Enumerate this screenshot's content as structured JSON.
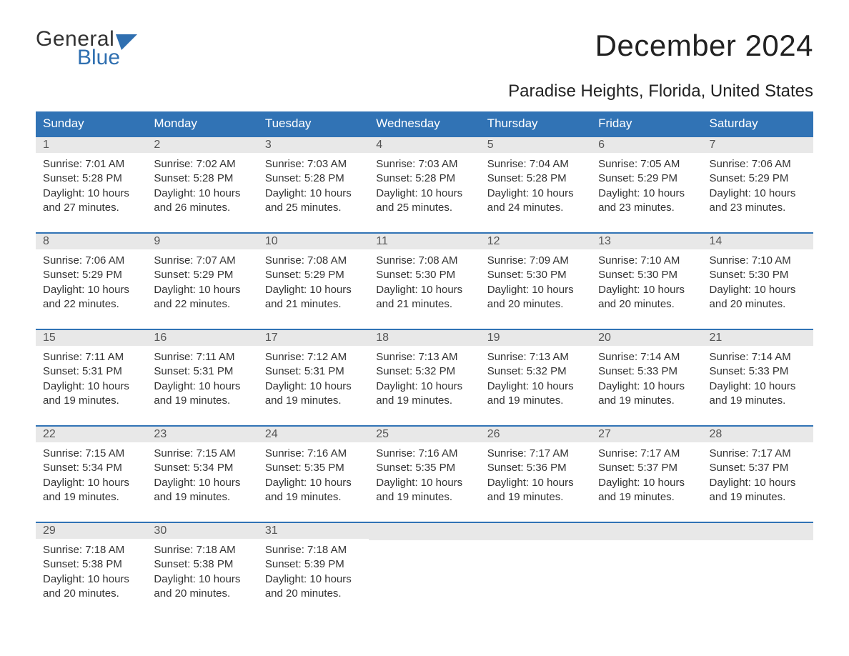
{
  "logo": {
    "word1": "General",
    "word2": "Blue"
  },
  "header_bg": "#3173b5",
  "week_border_color": "#3173b5",
  "daynum_bg": "#e8e8e8",
  "title": "December 2024",
  "location": "Paradise Heights, Florida, United States",
  "day_names": [
    "Sunday",
    "Monday",
    "Tuesday",
    "Wednesday",
    "Thursday",
    "Friday",
    "Saturday"
  ],
  "weeks": [
    [
      {
        "day": "1",
        "sunrise": "Sunrise: 7:01 AM",
        "sunset": "Sunset: 5:28 PM",
        "daylight1": "Daylight: 10 hours",
        "daylight2": "and 27 minutes."
      },
      {
        "day": "2",
        "sunrise": "Sunrise: 7:02 AM",
        "sunset": "Sunset: 5:28 PM",
        "daylight1": "Daylight: 10 hours",
        "daylight2": "and 26 minutes."
      },
      {
        "day": "3",
        "sunrise": "Sunrise: 7:03 AM",
        "sunset": "Sunset: 5:28 PM",
        "daylight1": "Daylight: 10 hours",
        "daylight2": "and 25 minutes."
      },
      {
        "day": "4",
        "sunrise": "Sunrise: 7:03 AM",
        "sunset": "Sunset: 5:28 PM",
        "daylight1": "Daylight: 10 hours",
        "daylight2": "and 25 minutes."
      },
      {
        "day": "5",
        "sunrise": "Sunrise: 7:04 AM",
        "sunset": "Sunset: 5:28 PM",
        "daylight1": "Daylight: 10 hours",
        "daylight2": "and 24 minutes."
      },
      {
        "day": "6",
        "sunrise": "Sunrise: 7:05 AM",
        "sunset": "Sunset: 5:29 PM",
        "daylight1": "Daylight: 10 hours",
        "daylight2": "and 23 minutes."
      },
      {
        "day": "7",
        "sunrise": "Sunrise: 7:06 AM",
        "sunset": "Sunset: 5:29 PM",
        "daylight1": "Daylight: 10 hours",
        "daylight2": "and 23 minutes."
      }
    ],
    [
      {
        "day": "8",
        "sunrise": "Sunrise: 7:06 AM",
        "sunset": "Sunset: 5:29 PM",
        "daylight1": "Daylight: 10 hours",
        "daylight2": "and 22 minutes."
      },
      {
        "day": "9",
        "sunrise": "Sunrise: 7:07 AM",
        "sunset": "Sunset: 5:29 PM",
        "daylight1": "Daylight: 10 hours",
        "daylight2": "and 22 minutes."
      },
      {
        "day": "10",
        "sunrise": "Sunrise: 7:08 AM",
        "sunset": "Sunset: 5:29 PM",
        "daylight1": "Daylight: 10 hours",
        "daylight2": "and 21 minutes."
      },
      {
        "day": "11",
        "sunrise": "Sunrise: 7:08 AM",
        "sunset": "Sunset: 5:30 PM",
        "daylight1": "Daylight: 10 hours",
        "daylight2": "and 21 minutes."
      },
      {
        "day": "12",
        "sunrise": "Sunrise: 7:09 AM",
        "sunset": "Sunset: 5:30 PM",
        "daylight1": "Daylight: 10 hours",
        "daylight2": "and 20 minutes."
      },
      {
        "day": "13",
        "sunrise": "Sunrise: 7:10 AM",
        "sunset": "Sunset: 5:30 PM",
        "daylight1": "Daylight: 10 hours",
        "daylight2": "and 20 minutes."
      },
      {
        "day": "14",
        "sunrise": "Sunrise: 7:10 AM",
        "sunset": "Sunset: 5:30 PM",
        "daylight1": "Daylight: 10 hours",
        "daylight2": "and 20 minutes."
      }
    ],
    [
      {
        "day": "15",
        "sunrise": "Sunrise: 7:11 AM",
        "sunset": "Sunset: 5:31 PM",
        "daylight1": "Daylight: 10 hours",
        "daylight2": "and 19 minutes."
      },
      {
        "day": "16",
        "sunrise": "Sunrise: 7:11 AM",
        "sunset": "Sunset: 5:31 PM",
        "daylight1": "Daylight: 10 hours",
        "daylight2": "and 19 minutes."
      },
      {
        "day": "17",
        "sunrise": "Sunrise: 7:12 AM",
        "sunset": "Sunset: 5:31 PM",
        "daylight1": "Daylight: 10 hours",
        "daylight2": "and 19 minutes."
      },
      {
        "day": "18",
        "sunrise": "Sunrise: 7:13 AM",
        "sunset": "Sunset: 5:32 PM",
        "daylight1": "Daylight: 10 hours",
        "daylight2": "and 19 minutes."
      },
      {
        "day": "19",
        "sunrise": "Sunrise: 7:13 AM",
        "sunset": "Sunset: 5:32 PM",
        "daylight1": "Daylight: 10 hours",
        "daylight2": "and 19 minutes."
      },
      {
        "day": "20",
        "sunrise": "Sunrise: 7:14 AM",
        "sunset": "Sunset: 5:33 PM",
        "daylight1": "Daylight: 10 hours",
        "daylight2": "and 19 minutes."
      },
      {
        "day": "21",
        "sunrise": "Sunrise: 7:14 AM",
        "sunset": "Sunset: 5:33 PM",
        "daylight1": "Daylight: 10 hours",
        "daylight2": "and 19 minutes."
      }
    ],
    [
      {
        "day": "22",
        "sunrise": "Sunrise: 7:15 AM",
        "sunset": "Sunset: 5:34 PM",
        "daylight1": "Daylight: 10 hours",
        "daylight2": "and 19 minutes."
      },
      {
        "day": "23",
        "sunrise": "Sunrise: 7:15 AM",
        "sunset": "Sunset: 5:34 PM",
        "daylight1": "Daylight: 10 hours",
        "daylight2": "and 19 minutes."
      },
      {
        "day": "24",
        "sunrise": "Sunrise: 7:16 AM",
        "sunset": "Sunset: 5:35 PM",
        "daylight1": "Daylight: 10 hours",
        "daylight2": "and 19 minutes."
      },
      {
        "day": "25",
        "sunrise": "Sunrise: 7:16 AM",
        "sunset": "Sunset: 5:35 PM",
        "daylight1": "Daylight: 10 hours",
        "daylight2": "and 19 minutes."
      },
      {
        "day": "26",
        "sunrise": "Sunrise: 7:17 AM",
        "sunset": "Sunset: 5:36 PM",
        "daylight1": "Daylight: 10 hours",
        "daylight2": "and 19 minutes."
      },
      {
        "day": "27",
        "sunrise": "Sunrise: 7:17 AM",
        "sunset": "Sunset: 5:37 PM",
        "daylight1": "Daylight: 10 hours",
        "daylight2": "and 19 minutes."
      },
      {
        "day": "28",
        "sunrise": "Sunrise: 7:17 AM",
        "sunset": "Sunset: 5:37 PM",
        "daylight1": "Daylight: 10 hours",
        "daylight2": "and 19 minutes."
      }
    ],
    [
      {
        "day": "29",
        "sunrise": "Sunrise: 7:18 AM",
        "sunset": "Sunset: 5:38 PM",
        "daylight1": "Daylight: 10 hours",
        "daylight2": "and 20 minutes."
      },
      {
        "day": "30",
        "sunrise": "Sunrise: 7:18 AM",
        "sunset": "Sunset: 5:38 PM",
        "daylight1": "Daylight: 10 hours",
        "daylight2": "and 20 minutes."
      },
      {
        "day": "31",
        "sunrise": "Sunrise: 7:18 AM",
        "sunset": "Sunset: 5:39 PM",
        "daylight1": "Daylight: 10 hours",
        "daylight2": "and 20 minutes."
      },
      null,
      null,
      null,
      null
    ]
  ]
}
